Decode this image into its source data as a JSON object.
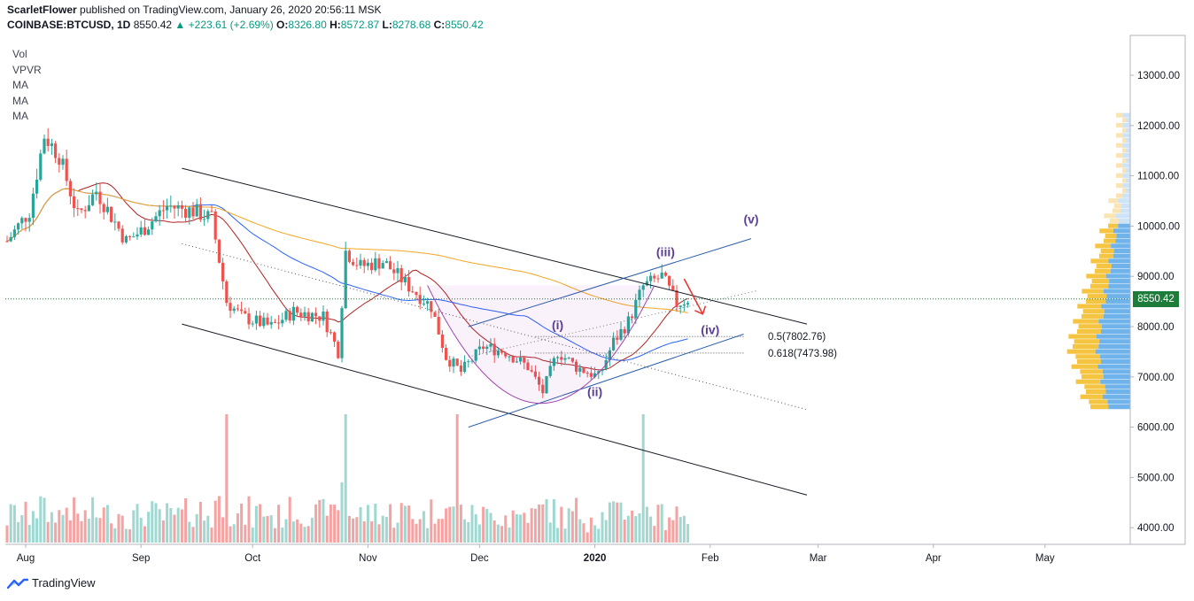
{
  "header": {
    "author": "ScarletFlower",
    "published_text": "published on TradingView.com, January 26, 2020 20:56:11 MSK",
    "symbol": "COINBASE:BTCUSD, 1D",
    "last": "8550.42",
    "change": "▲ +223.61 (+2.69%)",
    "o_label": "O:",
    "o_value": "8326.80",
    "h_label": "H:",
    "h_value": "8572.87",
    "l_label": "L:",
    "l_value": "8278.68",
    "c_label": "C:",
    "c_value": "8550.42"
  },
  "indicators": [
    "Vol",
    "VPVR",
    "MA",
    "MA",
    "MA"
  ],
  "footer": {
    "brand": "TradingView"
  },
  "price_badge": "8550.42",
  "colors": {
    "up": "#26a69a",
    "down": "#ef5350",
    "vol_up": "#9fd8d1",
    "vol_down": "#f4a3a3",
    "ma_red": "#b22222",
    "ma_blue": "#2962ff",
    "ma_orange": "#f5a623",
    "channel": "#131722",
    "wave_line": "#2b5fad",
    "label": "#5b3e96",
    "arrow": "#e53935"
  },
  "chart_data": {
    "type": "candlestick",
    "y_axis": {
      "min": 3700,
      "max": 13600,
      "ticks": [
        "13000.00",
        "12000.00",
        "11000.00",
        "10000.00",
        "9000.00",
        "8000.00",
        "7000.00",
        "6000.00",
        "5000.00",
        "4000.00"
      ]
    },
    "x_axis": {
      "labels": [
        "Aug",
        "Sep",
        "Oct",
        "Nov",
        "Dec",
        "2020",
        "Feb",
        "Mar",
        "Apr",
        "May"
      ],
      "start": "2019-07-27"
    },
    "wave_labels": [
      {
        "text": "(i)",
        "date": "2019-12-22",
        "price": 7950
      },
      {
        "text": "(ii)",
        "date": "2020-01-01",
        "price": 6620
      },
      {
        "text": "(iii)",
        "date": "2020-01-20",
        "price": 9400
      },
      {
        "text": "(iv)",
        "date": "2020-02-01",
        "price": 7850
      },
      {
        "text": "(v)",
        "date": "2020-02-12",
        "price": 10050
      }
    ],
    "fib_levels": [
      {
        "text": "0.5(7802.76)",
        "price": 7802.76
      },
      {
        "text": "0.618(7473.98)",
        "price": 7473.98
      }
    ],
    "last_price": 8550.42
  }
}
